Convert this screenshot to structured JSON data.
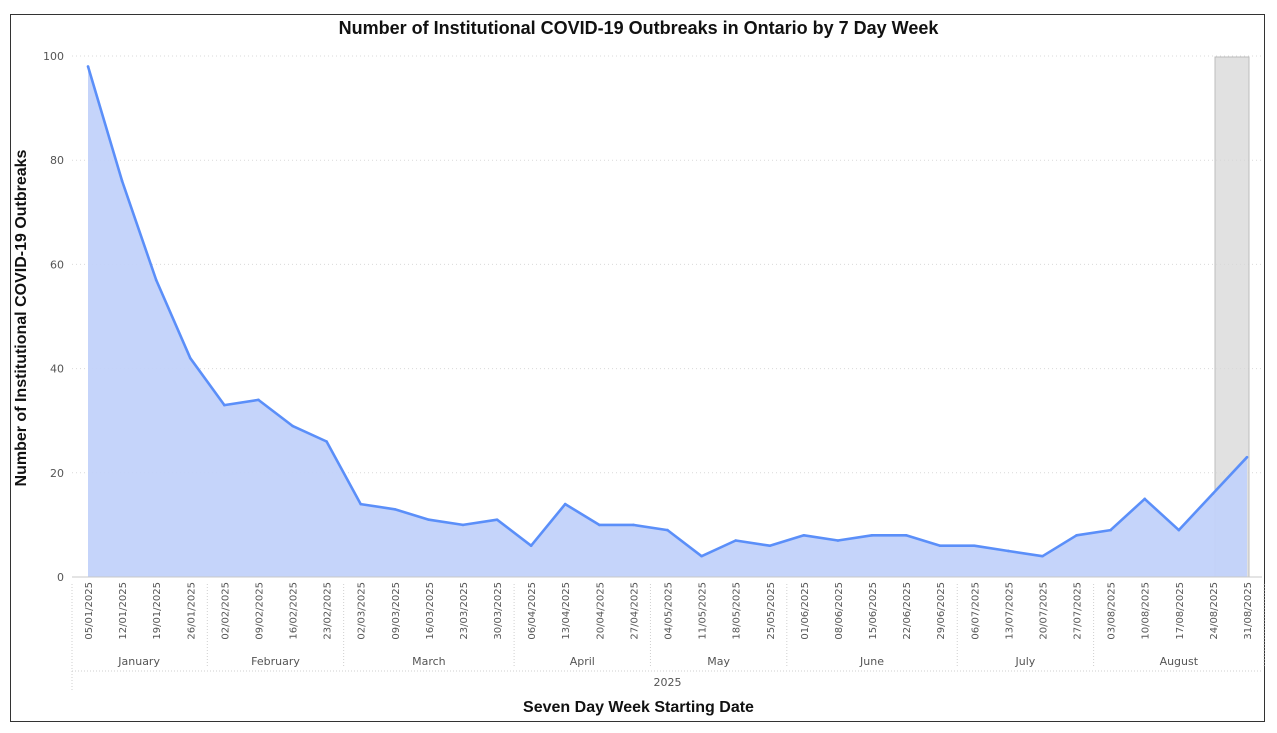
{
  "chart_data": {
    "type": "area",
    "title": "Number of Institutional COVID-19 Outbreaks in Ontario by 7 Day Week",
    "xlabel": "Seven Day Week Starting Date",
    "ylabel": "Number of Institutional COVID-19 Outbreaks",
    "ylim": [
      0,
      100
    ],
    "yticks": [
      0,
      20,
      40,
      60,
      80,
      100
    ],
    "grid": true,
    "year_label": "2025",
    "months": [
      "January",
      "February",
      "March",
      "April",
      "May",
      "June",
      "July",
      "August"
    ],
    "month_spans": [
      [
        0,
        3
      ],
      [
        4,
        7
      ],
      [
        8,
        12
      ],
      [
        13,
        16
      ],
      [
        17,
        20
      ],
      [
        21,
        25
      ],
      [
        26,
        29
      ],
      [
        30,
        34
      ]
    ],
    "x": [
      "05/01/2025",
      "12/01/2025",
      "19/01/2025",
      "26/01/2025",
      "02/02/2025",
      "09/02/2025",
      "16/02/2025",
      "23/02/2025",
      "02/03/2025",
      "09/03/2025",
      "16/03/2025",
      "23/03/2025",
      "30/03/2025",
      "06/04/2025",
      "13/04/2025",
      "20/04/2025",
      "27/04/2025",
      "04/05/2025",
      "11/05/2025",
      "18/05/2025",
      "25/05/2025",
      "01/06/2025",
      "08/06/2025",
      "15/06/2025",
      "22/06/2025",
      "29/06/2025",
      "06/07/2025",
      "13/07/2025",
      "20/07/2025",
      "27/07/2025",
      "03/08/2025",
      "10/08/2025",
      "17/08/2025",
      "24/08/2025",
      "31/08/2025"
    ],
    "series": [
      {
        "values": [
          98,
          76,
          57,
          42,
          33,
          34,
          29,
          26,
          14,
          13,
          11,
          10,
          11,
          6,
          14,
          10,
          10,
          9,
          4,
          7,
          6,
          8,
          7,
          8,
          8,
          6,
          6,
          5,
          4,
          8,
          9,
          15,
          9,
          16,
          23
        ]
      }
    ],
    "highlighted_week": "31/08/2025",
    "colors": {
      "line": "#5b8ff9",
      "fill": "#c2d2fa",
      "grid": "#d9d9d9",
      "highlight": "#d7d7d7"
    }
  }
}
